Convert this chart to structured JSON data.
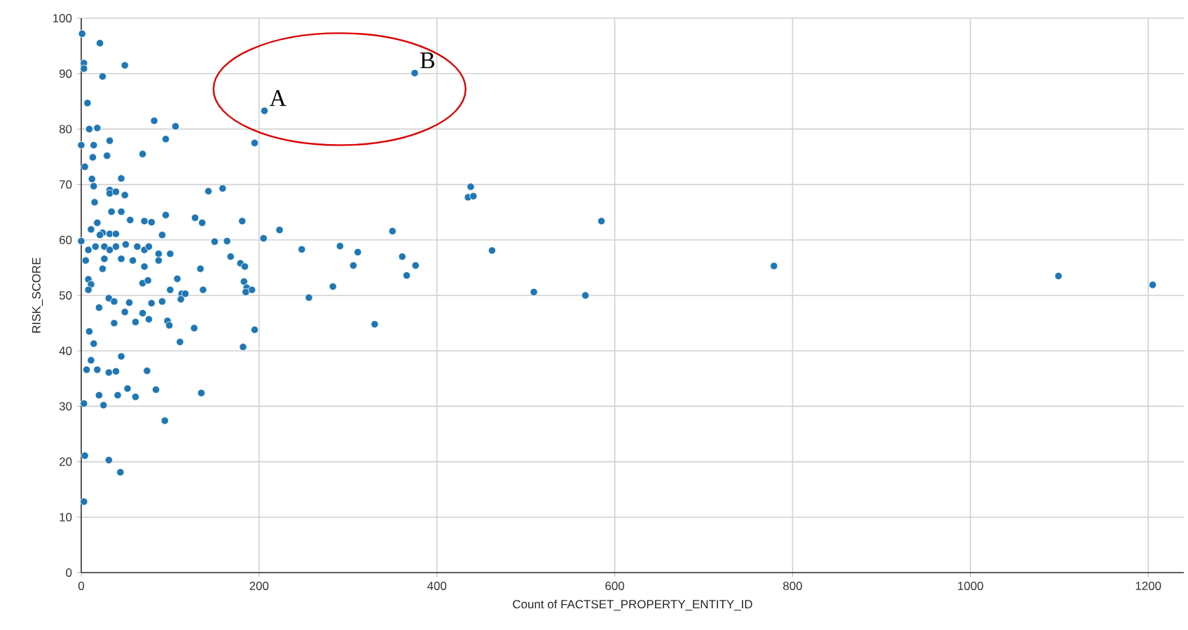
{
  "chart_data": {
    "type": "scatter",
    "xlabel": "Count of FACTSET_PROPERTY_ENTITY_ID",
    "ylabel": "RISK_SCORE",
    "xlim": [
      0,
      1240
    ],
    "ylim": [
      0,
      100
    ],
    "xticks": [
      0,
      200,
      400,
      600,
      800,
      1000,
      1200
    ],
    "yticks": [
      0,
      10,
      20,
      30,
      40,
      50,
      60,
      70,
      80,
      90,
      100
    ],
    "grid": true,
    "marker": "circle",
    "annotations": [
      {
        "text": "A",
        "x": 206,
        "y": 83.3
      },
      {
        "text": "B",
        "x": 375,
        "y": 90.1
      }
    ],
    "series": [
      {
        "color": "#1f77b4",
        "x": [
          1,
          21,
          3,
          3,
          49,
          24,
          7,
          82,
          106,
          9,
          18,
          95,
          32,
          0,
          14,
          69,
          29,
          13,
          195,
          4,
          12,
          14,
          45,
          32,
          32,
          39,
          49,
          15,
          143,
          159,
          34,
          45,
          18,
          55,
          71,
          79,
          95,
          128,
          136,
          181,
          91,
          11,
          24,
          32,
          39,
          21,
          0,
          8,
          16,
          26,
          32,
          39,
          50,
          63,
          71,
          76,
          87,
          100,
          45,
          26,
          5,
          24,
          58,
          71,
          87,
          108,
          134,
          150,
          164,
          168,
          179,
          184,
          183,
          186,
          8,
          69,
          75,
          100,
          113,
          137,
          11,
          8,
          185,
          192,
          31,
          37,
          54,
          79,
          91,
          112,
          117,
          20,
          49,
          69,
          37,
          61,
          76,
          97,
          99,
          127,
          9,
          195,
          14,
          111,
          182,
          45,
          11,
          6,
          18,
          31,
          39,
          74,
          84,
          135,
          52,
          61,
          20,
          41,
          3,
          25,
          94,
          4,
          31,
          44,
          3,
          206,
          375,
          438,
          435,
          441,
          205,
          223,
          350,
          585,
          248,
          291,
          311,
          361,
          376,
          306,
          366,
          462,
          256,
          283,
          330,
          509,
          567,
          779,
          1099,
          1205
        ],
        "values": [
          97.2,
          95.5,
          91.9,
          90.9,
          91.5,
          89.5,
          84.7,
          81.5,
          80.5,
          80,
          80.2,
          78.2,
          77.9,
          77.1,
          77.1,
          75.5,
          75.2,
          74.9,
          77.5,
          73.2,
          71,
          69.7,
          71.1,
          69,
          68.4,
          68.7,
          68.1,
          66.8,
          68.8,
          69.3,
          65.1,
          65.1,
          63.1,
          63.6,
          63.4,
          63.2,
          64.5,
          64,
          63.1,
          63.4,
          60.9,
          61.9,
          61.3,
          61.1,
          61.1,
          60.9,
          59.8,
          58.2,
          58.8,
          58.8,
          58.2,
          58.8,
          59.2,
          58.8,
          58.2,
          58.8,
          57.5,
          57.5,
          56.6,
          56.6,
          56.3,
          54.8,
          56.3,
          55.2,
          56.3,
          53,
          54.8,
          59.7,
          59.8,
          57,
          55.8,
          55.2,
          52.5,
          51.4,
          52.9,
          52.2,
          52.7,
          51,
          50.3,
          51,
          52,
          51,
          50.6,
          51,
          49.5,
          48.9,
          48.7,
          48.6,
          48.9,
          49.3,
          50.3,
          47.8,
          47,
          46.8,
          45,
          45.2,
          45.7,
          45.4,
          44.6,
          44.1,
          43.5,
          43.8,
          41.3,
          41.6,
          40.7,
          39,
          38.3,
          36.6,
          36.6,
          36.1,
          36.3,
          36.4,
          33,
          32.4,
          33.2,
          31.7,
          32,
          32,
          30.5,
          30.2,
          27.4,
          21.1,
          20.3,
          18.1,
          12.8,
          83.3,
          90.1,
          69.6,
          67.7,
          67.9,
          60.3,
          61.8,
          61.6,
          63.4,
          58.3,
          58.9,
          57.8,
          57,
          55.4,
          55.4,
          53.6,
          58.1,
          49.6,
          51.6,
          44.8,
          50.6,
          50,
          55.3,
          53.5,
          51.9
        ]
      }
    ]
  }
}
